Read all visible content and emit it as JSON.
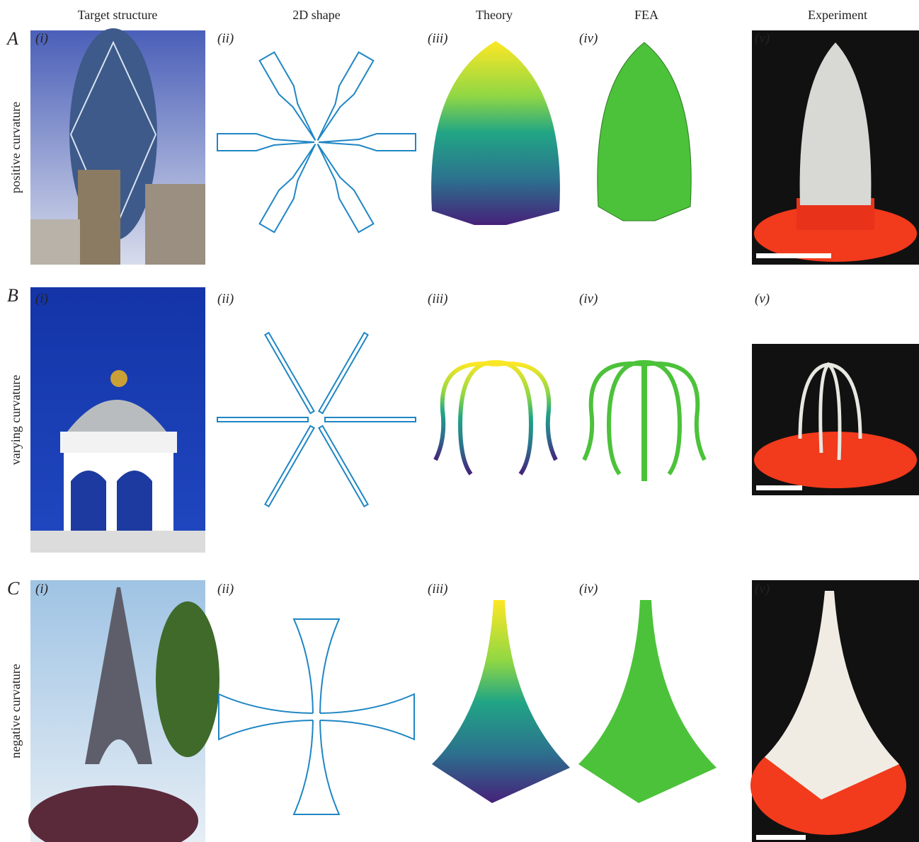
{
  "columns": [
    "Target structure",
    "2D shape",
    "Theory",
    "FEA",
    "Experiment"
  ],
  "rows": [
    {
      "letter": "A",
      "label": "positive curvature",
      "panels": [
        "(i)",
        "(ii)",
        "(iii)",
        "(iv)",
        "(v)"
      ]
    },
    {
      "letter": "B",
      "label": "varying curvature",
      "panels": [
        "(i)",
        "(ii)",
        "(iii)",
        "(iv)",
        "(v)"
      ]
    },
    {
      "letter": "C",
      "label": "negative curvature",
      "panels": [
        "(i)",
        "(ii)",
        "(iii)",
        "(iv)",
        "(v)"
      ]
    }
  ]
}
